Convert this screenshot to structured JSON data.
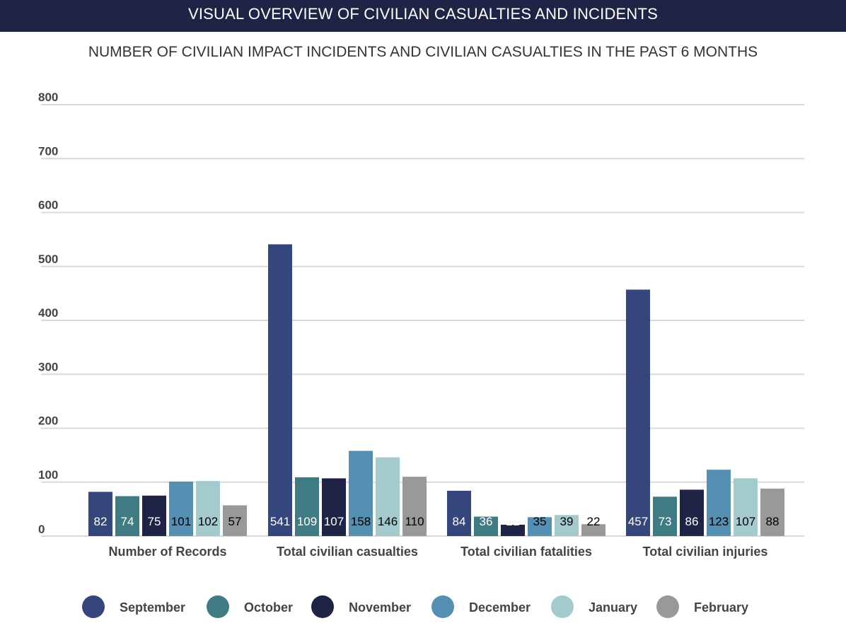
{
  "header": {
    "banner_title": "VISUAL OVERVIEW OF CIVILIAN CASUALTIES AND INCIDENTS"
  },
  "chart_data": {
    "type": "bar",
    "title": "NUMBER OF CIVILIAN IMPACT INCIDENTS AND CIVILIAN CASUALTIES IN THE PAST 6 MONTHS",
    "xlabel": "",
    "ylabel": "",
    "ylim": [
      0,
      800
    ],
    "yticks": [
      0,
      100,
      200,
      300,
      400,
      500,
      600,
      700,
      800
    ],
    "grid": true,
    "legend_position": "bottom",
    "categories": [
      "Number of Records",
      "Total civilian casualties",
      "Total civilian fatalities",
      "Total civilian injuries"
    ],
    "series": [
      {
        "name": "September",
        "color": "#34467c",
        "label_color": "#ffffff",
        "values": [
          82,
          541,
          84,
          457
        ]
      },
      {
        "name": "October",
        "color": "#3e7b82",
        "label_color": "#ffffff",
        "values": [
          74,
          109,
          36,
          73
        ]
      },
      {
        "name": "November",
        "color": "#1f2447",
        "label_color": "#ffffff",
        "values": [
          75,
          107,
          21,
          86
        ]
      },
      {
        "name": "December",
        "color": "#558fb3",
        "label_color": "#000000",
        "values": [
          101,
          158,
          35,
          123
        ]
      },
      {
        "name": "January",
        "color": "#a3cacc",
        "label_color": "#000000",
        "values": [
          102,
          146,
          39,
          107
        ]
      },
      {
        "name": "February",
        "color": "#999999",
        "label_color": "#000000",
        "values": [
          57,
          110,
          22,
          88
        ]
      }
    ]
  }
}
